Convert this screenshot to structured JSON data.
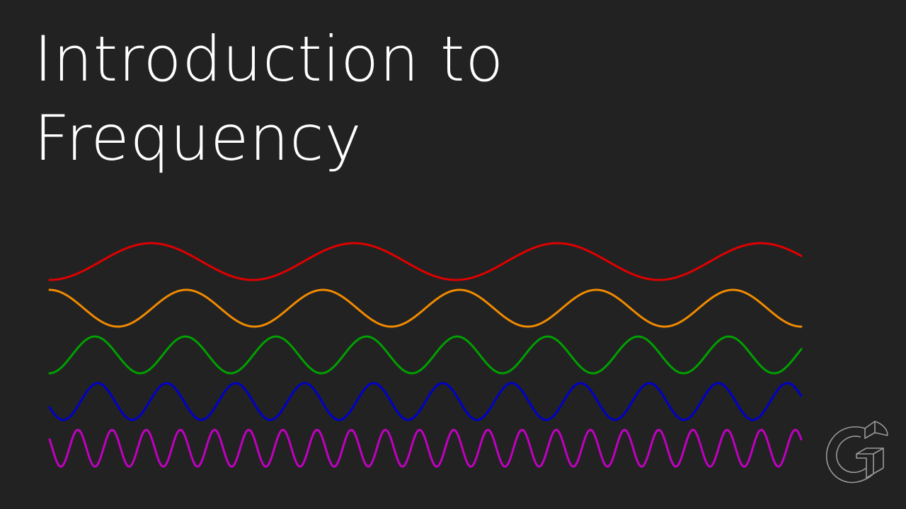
{
  "title": {
    "line1": "Introduction to",
    "line2": "Frequency"
  },
  "waves": [
    {
      "name": "red",
      "color": "#e00000",
      "cycles": 3.7,
      "phase": 0.75
    },
    {
      "name": "orange",
      "color": "#f08a00",
      "cycles": 5.5,
      "phase": 0.25
    },
    {
      "name": "green",
      "color": "#00a000",
      "cycles": 8.3,
      "phase": 0.75
    },
    {
      "name": "blue",
      "color": "#0000c8",
      "cycles": 10.9,
      "phase": 0.55
    },
    {
      "name": "magenta",
      "color": "#c000c0",
      "cycles": 22.0,
      "phase": 0.42
    }
  ],
  "logo": {
    "icon": "isometric-g-logo-icon",
    "color": "#9a9a9a"
  }
}
